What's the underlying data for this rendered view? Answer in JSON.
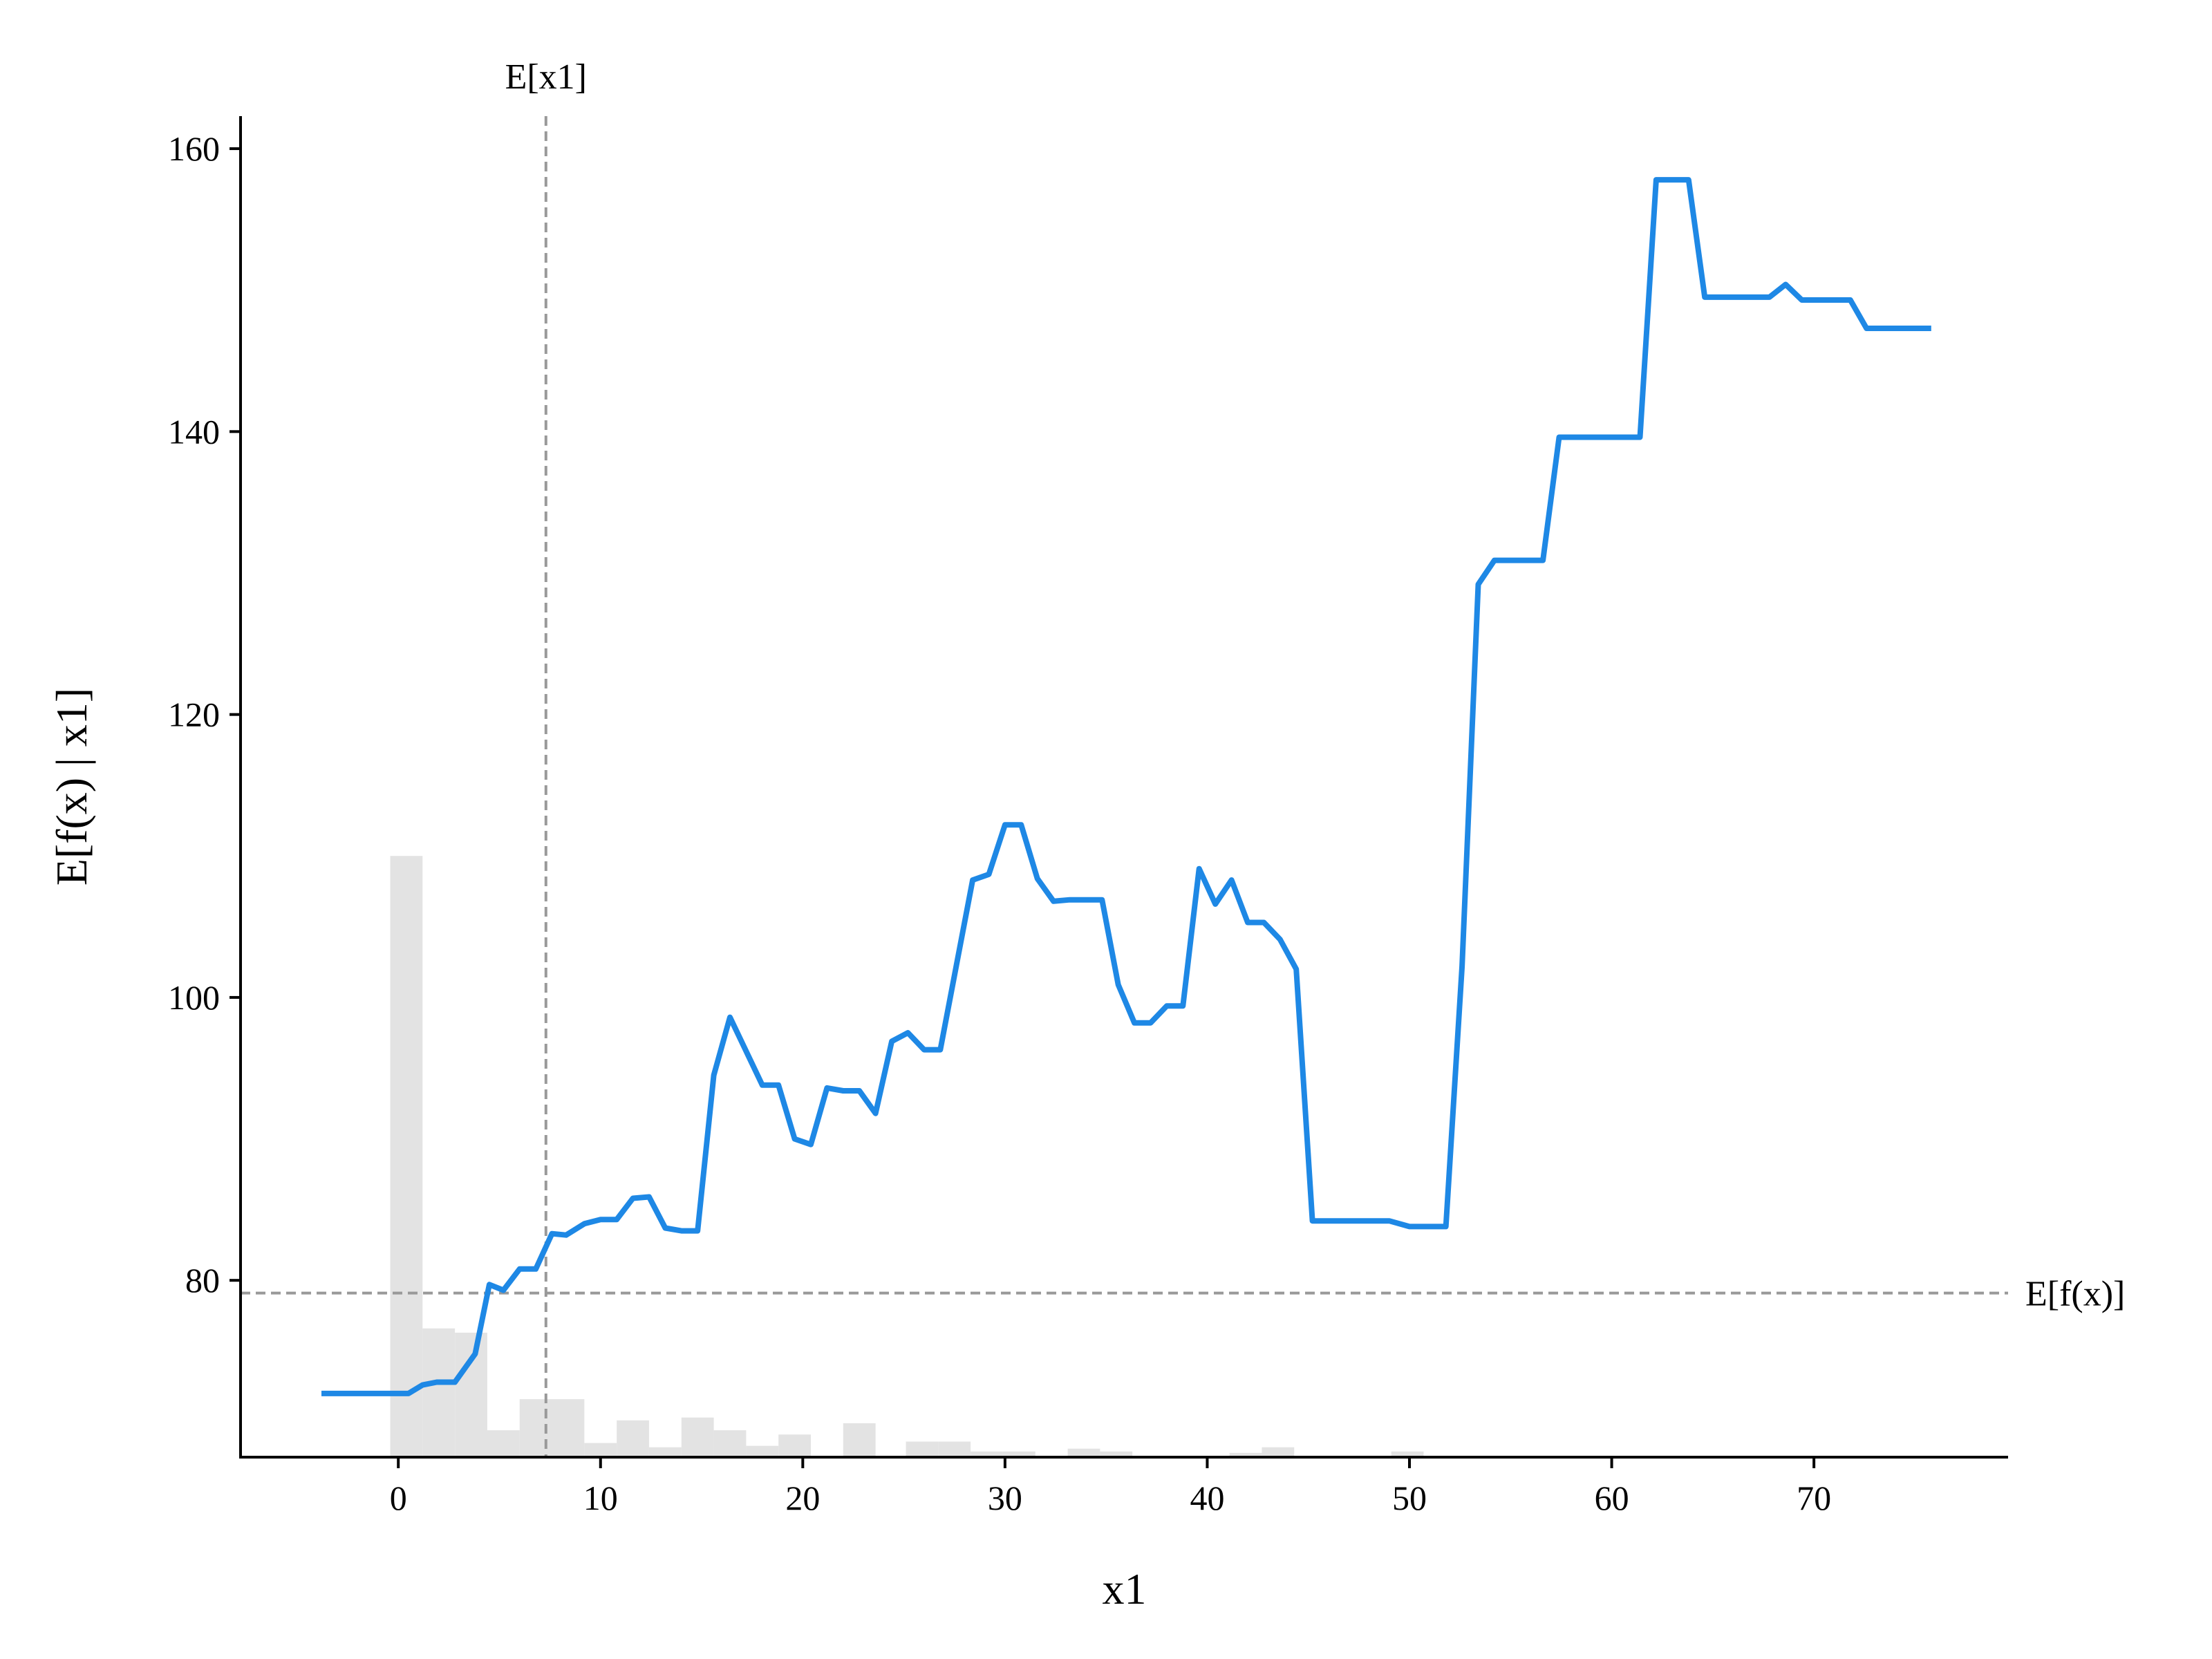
{
  "chart_data": {
    "type": "line",
    "title": "",
    "xlabel": "x1",
    "ylabel": "E[f(x) | x1]",
    "xlim": [
      -7.8,
      79.6
    ],
    "ylim": [
      67.5,
      162.3
    ],
    "xticks": [
      0,
      10,
      20,
      30,
      40,
      50,
      60,
      70
    ],
    "yticks": [
      80,
      100,
      120,
      140,
      160
    ],
    "grid": false,
    "legend": "none",
    "reference_lines": {
      "vertical": {
        "x": 7.3,
        "label": "E[x1]"
      },
      "horizontal": {
        "y": 79.1,
        "label": "E[f(x)]"
      }
    },
    "colors": {
      "line": "#1E88E5",
      "histogram": "#e3e3e3",
      "reference": "#999999",
      "axis": "#000000"
    },
    "histogram": {
      "note_units": "bar heights in y-axis units",
      "bins": [
        {
          "x0": -0.4,
          "x1": 1.2,
          "top": 110.0
        },
        {
          "x0": 1.2,
          "x1": 2.8,
          "top": 76.6
        },
        {
          "x0": 2.8,
          "x1": 4.4,
          "top": 76.3
        },
        {
          "x0": 4.4,
          "x1": 6.0,
          "top": 69.4
        },
        {
          "x0": 6.0,
          "x1": 7.6,
          "top": 71.6
        },
        {
          "x0": 7.6,
          "x1": 9.2,
          "top": 71.6
        },
        {
          "x0": 9.2,
          "x1": 10.8,
          "top": 68.5
        },
        {
          "x0": 10.8,
          "x1": 12.4,
          "top": 70.1
        },
        {
          "x0": 12.4,
          "x1": 14.0,
          "top": 68.2
        },
        {
          "x0": 14.0,
          "x1": 15.6,
          "top": 70.3
        },
        {
          "x0": 15.6,
          "x1": 17.2,
          "top": 69.4
        },
        {
          "x0": 17.2,
          "x1": 18.8,
          "top": 68.3
        },
        {
          "x0": 18.8,
          "x1": 20.4,
          "top": 69.1
        },
        {
          "x0": 22.0,
          "x1": 23.6,
          "top": 69.9
        },
        {
          "x0": 25.1,
          "x1": 26.7,
          "top": 68.6
        },
        {
          "x0": 26.7,
          "x1": 28.3,
          "top": 68.6
        },
        {
          "x0": 28.3,
          "x1": 29.9,
          "top": 67.9
        },
        {
          "x0": 29.9,
          "x1": 31.5,
          "top": 67.9
        },
        {
          "x0": 33.1,
          "x1": 34.7,
          "top": 68.1
        },
        {
          "x0": 34.7,
          "x1": 36.3,
          "top": 67.9
        },
        {
          "x0": 41.1,
          "x1": 42.7,
          "top": 67.8
        },
        {
          "x0": 42.7,
          "x1": 44.3,
          "top": 68.2
        },
        {
          "x0": 49.1,
          "x1": 50.7,
          "top": 67.9
        }
      ]
    },
    "series": [
      {
        "x": [
          -3.8,
          0.5,
          1.2,
          1.9,
          2.8,
          3.8,
          4.5,
          5.2,
          6.0,
          6.8,
          7.6,
          8.3,
          9.2,
          10.0,
          10.8,
          11.6,
          12.4,
          13.2,
          14.0,
          14.8,
          15.6,
          16.4,
          17.2,
          18.0,
          18.8,
          19.6,
          20.4,
          21.2,
          22.0,
          22.8,
          23.6,
          24.4,
          25.2,
          26.0,
          26.8,
          27.6,
          28.4,
          29.2,
          30.0,
          30.8,
          31.6,
          32.4,
          33.2,
          34.0,
          34.8,
          35.6,
          36.4,
          37.2,
          38.0,
          38.8,
          39.6,
          40.4,
          41.2,
          42.0,
          42.8,
          43.6,
          44.4,
          45.2,
          46.0,
          47.0,
          48.0,
          49.0,
          50.0,
          51.0,
          51.8,
          52.6,
          53.4,
          54.2,
          55.0,
          55.8,
          56.6,
          57.4,
          58.2,
          59.0,
          59.8,
          60.6,
          61.4,
          62.2,
          63.0,
          63.8,
          64.6,
          65.4,
          66.2,
          67.0,
          67.8,
          68.6,
          69.4,
          70.2,
          71.0,
          71.8,
          72.6,
          73.4,
          74.2,
          75.0,
          75.8
        ],
        "y": [
          72.0,
          72.0,
          72.6,
          72.8,
          72.8,
          74.8,
          79.7,
          79.3,
          80.8,
          80.8,
          83.3,
          83.2,
          84.0,
          84.3,
          84.3,
          85.8,
          85.9,
          83.7,
          83.5,
          83.5,
          94.5,
          98.6,
          96.2,
          93.8,
          93.8,
          90.0,
          89.6,
          93.6,
          93.4,
          93.4,
          91.8,
          96.9,
          97.5,
          96.3,
          96.3,
          102.3,
          108.3,
          108.7,
          112.2,
          112.2,
          108.4,
          106.8,
          106.9,
          106.9,
          106.9,
          100.9,
          98.2,
          98.2,
          99.4,
          99.4,
          109.1,
          106.6,
          108.3,
          105.3,
          105.3,
          104.1,
          102.0,
          84.2,
          84.2,
          84.2,
          84.2,
          84.2,
          83.8,
          83.8,
          83.8,
          102.2,
          129.2,
          130.9,
          130.9,
          130.9,
          130.9,
          139.6,
          139.6,
          139.6,
          139.6,
          139.6,
          139.6,
          157.8,
          157.8,
          157.8,
          149.5,
          149.5,
          149.5,
          149.5,
          149.5,
          150.4,
          149.3,
          149.3,
          149.3,
          149.3,
          147.3,
          147.3,
          147.3,
          147.3,
          147.3
        ]
      }
    ]
  }
}
